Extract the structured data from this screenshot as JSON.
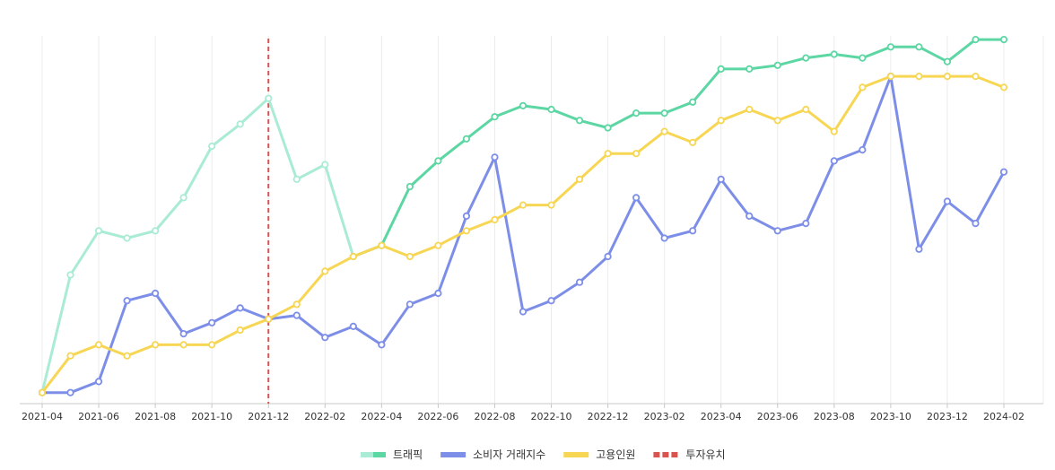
{
  "chart_data": {
    "type": "line",
    "x": [
      "2021-04",
      "2021-05",
      "2021-06",
      "2021-07",
      "2021-08",
      "2021-09",
      "2021-10",
      "2021-11",
      "2021-12",
      "2022-01",
      "2022-02",
      "2022-03",
      "2022-04",
      "2022-05",
      "2022-06",
      "2022-07",
      "2022-08",
      "2022-09",
      "2022-10",
      "2022-11",
      "2022-12",
      "2023-01",
      "2023-02",
      "2023-03",
      "2023-04",
      "2023-05",
      "2023-06",
      "2023-07",
      "2023-08",
      "2023-09",
      "2023-10",
      "2023-11",
      "2023-12",
      "2024-01",
      "2024-02"
    ],
    "x_tick_labels": [
      "2021-04",
      "2021-06",
      "2021-08",
      "2021-10",
      "2021-12",
      "2022-02",
      "2022-04",
      "2022-06",
      "2022-08",
      "2022-10",
      "2022-12",
      "2023-02",
      "2023-04",
      "2023-06",
      "2023-08",
      "2023-10",
      "2023-12",
      "2024-02"
    ],
    "ylim": [
      0,
      100
    ],
    "grid": "vertical",
    "legend_position": "bottom-center",
    "series": [
      {
        "name": "트래픽",
        "color": "#5cd6a3",
        "faded_color": "#a9ecd3",
        "faded_until_index": 11,
        "values": [
          3,
          35,
          47,
          45,
          47,
          56,
          70,
          76,
          83,
          61,
          65,
          40,
          43,
          59,
          66,
          72,
          78,
          81,
          80,
          77,
          75,
          79,
          79,
          82,
          91,
          91,
          92,
          94,
          95,
          94,
          97,
          97,
          93,
          99,
          99
        ]
      },
      {
        "name": "소비자 거래지수",
        "color": "#7d8ee8",
        "values": [
          3,
          3,
          6,
          28,
          30,
          19,
          22,
          26,
          23,
          24,
          18,
          21,
          16,
          27,
          30,
          51,
          67,
          25,
          28,
          33,
          40,
          56,
          45,
          47,
          61,
          51,
          47,
          49,
          66,
          69,
          89,
          42,
          55,
          49,
          63
        ]
      },
      {
        "name": "고용인원",
        "color": "#f7d654",
        "values": [
          3,
          13,
          16,
          13,
          16,
          16,
          16,
          20,
          23,
          27,
          36,
          40,
          43,
          40,
          43,
          47,
          50,
          54,
          54,
          61,
          68,
          68,
          74,
          71,
          77,
          80,
          77,
          80,
          74,
          86,
          89,
          89,
          89,
          89,
          86
        ]
      }
    ],
    "annotations": [
      {
        "name": "투자유치",
        "type": "vertical-line",
        "x": "2021-12",
        "color": "#d9534f",
        "style": "dashed"
      }
    ]
  }
}
